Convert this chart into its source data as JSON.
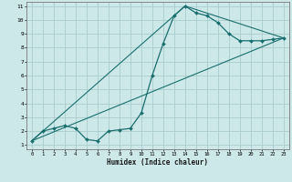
{
  "xlabel": "Humidex (Indice chaleur)",
  "bg_color": "#cce8e8",
  "grid_color": "#aacccc",
  "line_color": "#1a6e6e",
  "marker_color": "#1a6e6e",
  "xlim": [
    -0.5,
    23.5
  ],
  "ylim": [
    0.7,
    11.3
  ],
  "xticks": [
    0,
    1,
    2,
    3,
    4,
    5,
    6,
    7,
    8,
    9,
    10,
    11,
    12,
    13,
    14,
    15,
    16,
    17,
    18,
    19,
    20,
    21,
    22,
    23
  ],
  "yticks": [
    1,
    2,
    3,
    4,
    5,
    6,
    7,
    8,
    9,
    10,
    11
  ],
  "curve1_x": [
    0,
    1,
    2,
    3,
    4,
    5,
    6,
    7,
    8,
    9,
    10,
    11,
    12,
    13,
    14,
    15,
    16,
    17,
    18,
    19,
    20,
    21,
    22,
    23
  ],
  "curve1_y": [
    1.3,
    2.0,
    2.2,
    2.4,
    2.2,
    1.4,
    1.3,
    2.0,
    2.1,
    2.2,
    3.3,
    6.0,
    8.3,
    10.3,
    11.0,
    10.5,
    10.3,
    9.8,
    9.0,
    8.5,
    8.5,
    8.5,
    8.6,
    8.7
  ],
  "curve2_x": [
    0,
    23
  ],
  "curve2_y": [
    1.3,
    8.7
  ],
  "curve3_x": [
    0,
    14,
    23
  ],
  "curve3_y": [
    1.3,
    11.0,
    8.7
  ]
}
